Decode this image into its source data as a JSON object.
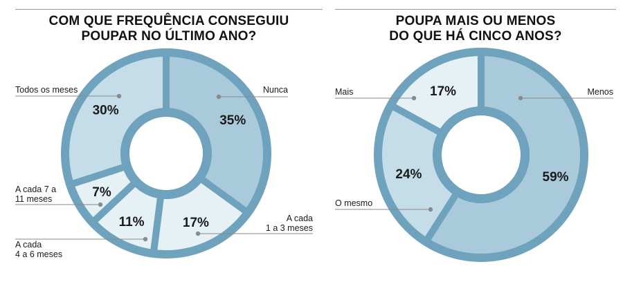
{
  "colors": {
    "ring": "#6fa3bd",
    "shade_dark": "#a9cadb",
    "shade_mid": "#c4dde8",
    "shade_light": "#e6f1f6",
    "leader": "#8a8a8a"
  },
  "chart_data": [
    {
      "type": "pie",
      "title": "COM QUE FREQUÊNCIA CONSEGUIU POUPAR NO ÚLTIMO ANO?",
      "title_lines": [
        "COM QUE FREQUÊNCIA CONSEGUIU",
        "POUPAR NO ÚLTIMO ANO?"
      ],
      "slices": [
        {
          "label": "Nunca",
          "label_lines": [
            "Nunca"
          ],
          "value": 35,
          "value_label": "35%",
          "shade": "dark"
        },
        {
          "label": "A cada 1 a 3 meses",
          "label_lines": [
            "A cada",
            "1 a 3 meses"
          ],
          "value": 17,
          "value_label": "17%",
          "shade": "light"
        },
        {
          "label": "A cada 4 a 6 meses",
          "label_lines": [
            "A cada",
            "4 a 6 meses"
          ],
          "value": 11,
          "value_label": "11%",
          "shade": "light"
        },
        {
          "label": "A cada 7 a 11 meses",
          "label_lines": [
            "A cada 7 a",
            "11 meses"
          ],
          "value": 7,
          "value_label": "7%",
          "shade": "light"
        },
        {
          "label": "Todos os meses",
          "label_lines": [
            "Todos os meses"
          ],
          "value": 30,
          "value_label": "30%",
          "shade": "mid"
        }
      ]
    },
    {
      "type": "pie",
      "title": "POUPA MAIS OU MENOS DO QUE HÁ CINCO ANOS?",
      "title_lines": [
        "POUPA MAIS OU MENOS",
        "DO QUE HÁ CINCO ANOS?"
      ],
      "slices": [
        {
          "label": "Menos",
          "label_lines": [
            "Menos"
          ],
          "value": 59,
          "value_label": "59%",
          "shade": "dark"
        },
        {
          "label": "O mesmo",
          "label_lines": [
            "O mesmo"
          ],
          "value": 24,
          "value_label": "24%",
          "shade": "mid"
        },
        {
          "label": "Mais",
          "label_lines": [
            "Mais"
          ],
          "value": 17,
          "value_label": "17%",
          "shade": "light"
        }
      ]
    }
  ]
}
